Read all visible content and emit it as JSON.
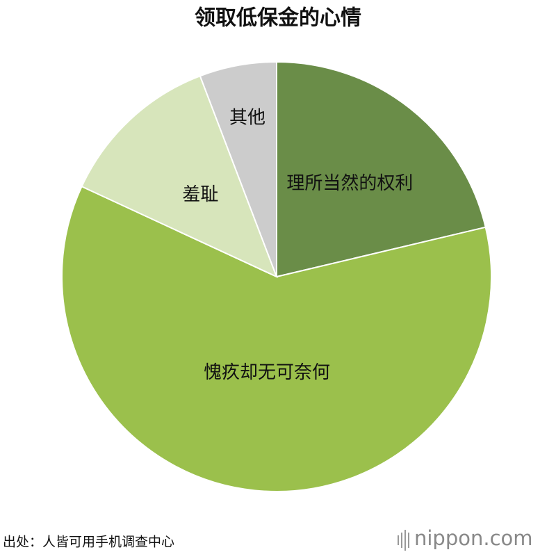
{
  "chart_data": {
    "type": "pie",
    "title": "领取低保金的心情",
    "categories": [
      "理所当然的权利",
      "愧疚却无可奈何",
      "羞耻",
      "其他"
    ],
    "values": [
      21.3,
      60.6,
      12.3,
      5.8
    ],
    "colors": [
      "#6a8d48",
      "#9bc04c",
      "#d7e5bb",
      "#cccccc"
    ],
    "source": "出处：人皆可用手机调查中心",
    "brand": "nippon.com"
  }
}
